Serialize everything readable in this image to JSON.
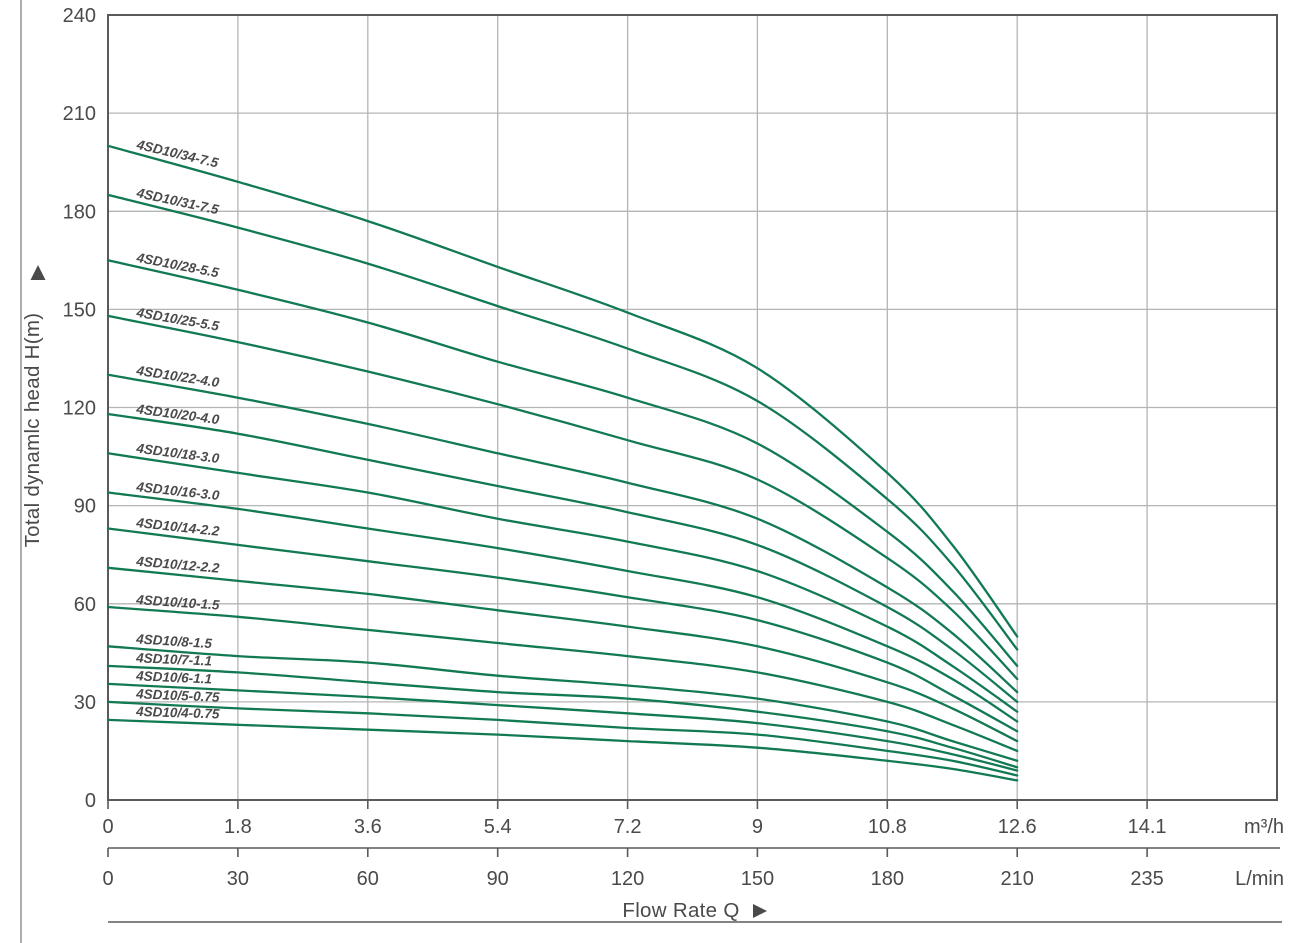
{
  "page": {
    "background": "#ffffff"
  },
  "icons": {
    "y_axis_arrow": "up-triangle",
    "x_axis_arrow": "right-triangle"
  },
  "chart_data": {
    "type": "line",
    "title": "",
    "ylabel": "Total dynamlc head H(m)",
    "xlabel": "Flow Rate Q",
    "ylim": [
      0,
      240
    ],
    "y_ticks": [
      240,
      210,
      180,
      150,
      120,
      90,
      60,
      30,
      0
    ],
    "grid": true,
    "legend_position": "inline-curve-labels",
    "x_axis_m3h": {
      "unit": "m³/h",
      "ticks": [
        "0",
        "1.8",
        "3.6",
        "5.4",
        "7.2",
        "9",
        "10.8",
        "12.6",
        "14.1"
      ]
    },
    "x_axis_lmin": {
      "unit": "L/min",
      "ticks": [
        "0",
        "30",
        "60",
        "90",
        "120",
        "150",
        "180",
        "210",
        "235"
      ]
    },
    "colors": {
      "curve": "#127a52",
      "grid": "#b5b5b5",
      "border": "#5a5a5a",
      "text": "#4a4a4a"
    },
    "q_values_m3h": [
      0,
      1.8,
      3.6,
      5.4,
      7.2,
      9,
      10.8,
      11.7,
      12.6
    ],
    "series": [
      {
        "name": "4SD10/34-7.5",
        "heads": [
          200,
          189,
          177,
          163,
          149,
          132,
          100,
          78,
          50
        ]
      },
      {
        "name": "4SD10/31-7.5",
        "heads": [
          185,
          175,
          164,
          151,
          138,
          122,
          92,
          72,
          46
        ]
      },
      {
        "name": "4SD10/28-5.5",
        "heads": [
          165,
          156,
          146,
          134,
          123,
          109,
          82,
          64,
          41
        ]
      },
      {
        "name": "4SD10/25-5.5",
        "heads": [
          148,
          140,
          131,
          121,
          110,
          98,
          74,
          58,
          37
        ]
      },
      {
        "name": "4SD10/22-4.0",
        "heads": [
          130,
          123,
          115,
          106,
          97,
          86,
          65,
          51,
          33
        ]
      },
      {
        "name": "4SD10/20-4.0",
        "heads": [
          118,
          112,
          104,
          96,
          88,
          78,
          59,
          46,
          30
        ]
      },
      {
        "name": "4SD10/18-3.0",
        "heads": [
          106,
          100,
          94,
          86,
          79,
          70,
          53,
          41,
          27
        ]
      },
      {
        "name": "4SD10/16-3.0",
        "heads": [
          94,
          89,
          83,
          77,
          70,
          62,
          47,
          37,
          24
        ]
      },
      {
        "name": "4SD10/14-2.2",
        "heads": [
          83,
          78,
          73,
          68,
          62,
          55,
          42,
          32,
          21
        ]
      },
      {
        "name": "4SD10/12-2.2",
        "heads": [
          71,
          67,
          63,
          58,
          53,
          47,
          36,
          28,
          18
        ]
      },
      {
        "name": "4SD10/10-1.5",
        "heads": [
          59,
          56,
          52,
          48,
          44,
          39,
          30,
          23,
          15
        ]
      },
      {
        "name": "4SD10/8-1.5",
        "heads": [
          47,
          44,
          42,
          38,
          35,
          31,
          24,
          18,
          12
        ]
      },
      {
        "name": "4SD10/7-1.1",
        "heads": [
          41,
          39,
          36,
          33,
          31,
          27,
          21,
          16,
          10
        ]
      },
      {
        "name": "4SD10/6-1.1",
        "heads": [
          35.5,
          33.5,
          31.5,
          29,
          26.5,
          23.5,
          18,
          14,
          9
        ]
      },
      {
        "name": "4SD10/5-0.75",
        "heads": [
          30,
          28,
          26.5,
          24.5,
          22,
          20,
          15,
          12,
          7.5
        ]
      },
      {
        "name": "4SD10/4-0.75",
        "heads": [
          24.5,
          23,
          21.5,
          20,
          18,
          16,
          12,
          9.5,
          6
        ]
      }
    ]
  }
}
